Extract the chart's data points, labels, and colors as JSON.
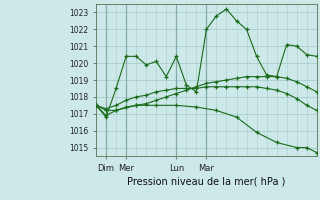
{
  "background_color": "#cce8e8",
  "grid_color": "#aacccc",
  "line_color": "#1a6b1a",
  "title": "Pression niveau de la mer( hPa )",
  "ylim": [
    1014.5,
    1023.5
  ],
  "yticks": [
    1015,
    1016,
    1017,
    1018,
    1019,
    1020,
    1021,
    1022,
    1023
  ],
  "xlabel_ticks": [
    {
      "label": "Dim",
      "x": 1
    },
    {
      "label": "Mer",
      "x": 3
    },
    {
      "label": "Lun",
      "x": 8
    },
    {
      "label": "Mar",
      "x": 11
    }
  ],
  "vlines": [
    1,
    3,
    8,
    11
  ],
  "series": [
    {
      "x": [
        0,
        1,
        2,
        3,
        4,
        5,
        6,
        7,
        8,
        9,
        10,
        11,
        12,
        13,
        14,
        15,
        16,
        17,
        18,
        19,
        20,
        21,
        22
      ],
      "y": [
        1017.5,
        1016.8,
        1018.5,
        1020.4,
        1020.4,
        1019.9,
        1020.1,
        1019.2,
        1020.4,
        1018.7,
        1018.3,
        1022.0,
        1022.8,
        1023.2,
        1022.5,
        1022.0,
        1020.4,
        1019.3,
        1019.2,
        1021.1,
        1021.0,
        1020.5,
        1020.4
      ]
    },
    {
      "x": [
        0,
        1,
        2,
        3,
        4,
        5,
        6,
        7,
        8,
        9,
        10,
        11,
        12,
        13,
        14,
        15,
        16,
        17,
        18,
        19,
        20,
        21,
        22
      ],
      "y": [
        1017.5,
        1016.9,
        1017.2,
        1017.4,
        1017.5,
        1017.6,
        1017.8,
        1018.0,
        1018.2,
        1018.4,
        1018.6,
        1018.8,
        1018.9,
        1019.0,
        1019.1,
        1019.2,
        1019.2,
        1019.2,
        1019.2,
        1019.1,
        1018.9,
        1018.6,
        1018.3
      ]
    },
    {
      "x": [
        0,
        1,
        2,
        3,
        4,
        5,
        6,
        7,
        8,
        9,
        10,
        11,
        12,
        13,
        14,
        15,
        16,
        17,
        18,
        19,
        20,
        21,
        22
      ],
      "y": [
        1017.5,
        1017.3,
        1017.5,
        1017.8,
        1018.0,
        1018.1,
        1018.3,
        1018.4,
        1018.5,
        1018.5,
        1018.5,
        1018.6,
        1018.6,
        1018.6,
        1018.6,
        1018.6,
        1018.6,
        1018.5,
        1018.4,
        1018.2,
        1017.9,
        1017.5,
        1017.2
      ]
    },
    {
      "x": [
        0,
        1,
        2,
        4,
        6,
        8,
        10,
        12,
        14,
        16,
        18,
        20,
        21,
        22
      ],
      "y": [
        1017.5,
        1017.2,
        1017.2,
        1017.5,
        1017.5,
        1017.5,
        1017.4,
        1017.2,
        1016.8,
        1015.9,
        1015.3,
        1015.0,
        1015.0,
        1014.7
      ]
    }
  ]
}
